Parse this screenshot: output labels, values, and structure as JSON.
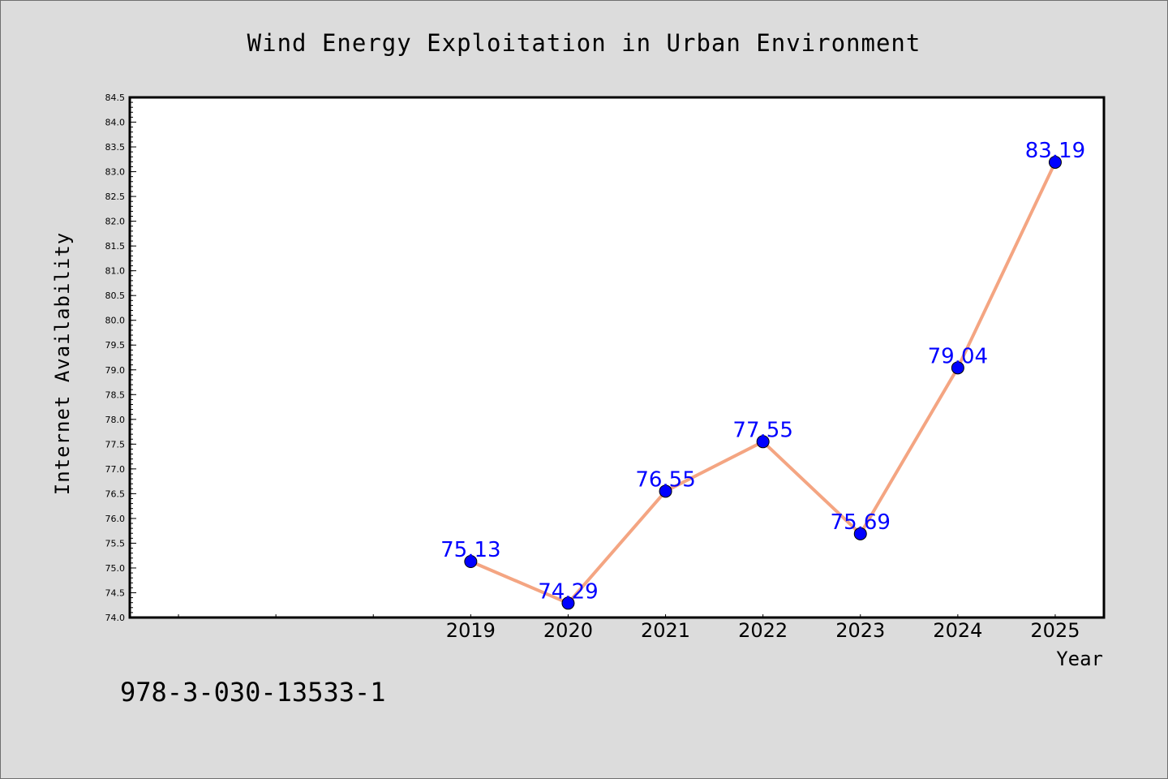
{
  "chart_data": {
    "type": "line",
    "title": "Wind Energy Exploitation in Urban Environment",
    "xlabel": "Year",
    "ylabel": "Internet Availability",
    "categories": [
      "2019",
      "2020",
      "2021",
      "2022",
      "2023",
      "2024",
      "2025"
    ],
    "values": [
      75.13,
      74.29,
      76.55,
      77.55,
      75.69,
      79.04,
      83.19
    ],
    "data_labels": [
      "75.13",
      "74.29",
      "76.55",
      "77.55",
      "75.69",
      "79.04",
      "83.19"
    ],
    "ylim": [
      74.0,
      84.5
    ],
    "yticks": [
      "74.0",
      "74.5",
      "75.0",
      "75.5",
      "76.0",
      "76.5",
      "77.0",
      "77.5",
      "78.0",
      "78.5",
      "79.0",
      "79.5",
      "80.0",
      "80.5",
      "81.0",
      "81.5",
      "82.0",
      "82.5",
      "83.0",
      "83.5",
      "84.0",
      "84.5"
    ],
    "x_slots": 10,
    "grid": false,
    "legend": "none",
    "colors": {
      "line": "#f4a582",
      "marker": "#0000ff",
      "label": "#0000ff",
      "plot_background": "#ffffff",
      "figure_background": "#dcdcdc"
    }
  },
  "footer": {
    "text": "978-3-030-13533-1"
  }
}
